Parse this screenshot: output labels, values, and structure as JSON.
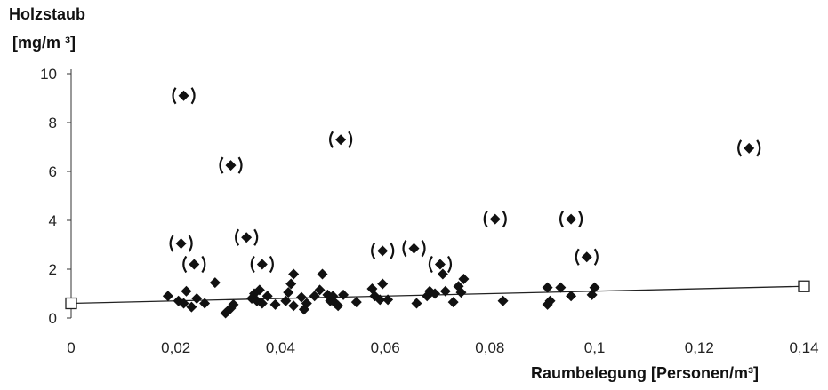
{
  "chart_data": {
    "type": "scatter",
    "ylabel_line1": "Holzstaub",
    "ylabel_line2": "[mg/m ³]",
    "xlabel": "Raumbelegung [Personen/m³]",
    "xlim": [
      0,
      0.14
    ],
    "ylim": [
      0,
      10
    ],
    "x_ticks": [
      0,
      0.02,
      0.04,
      0.06,
      0.08,
      0.1,
      0.12,
      0.14
    ],
    "x_tick_labels": [
      "0",
      "0,02",
      "0,04",
      "0,06",
      "0,08",
      "0,1",
      "0,12",
      "0,14"
    ],
    "y_ticks": [
      0,
      2,
      4,
      6,
      8,
      10
    ],
    "y_tick_labels": [
      "0",
      "2",
      "4",
      "6",
      "8",
      "10"
    ],
    "grid": false,
    "marker_color": "#111111",
    "points": [
      {
        "x": 0.0185,
        "y": 0.9
      },
      {
        "x": 0.0205,
        "y": 0.7
      },
      {
        "x": 0.0215,
        "y": 0.6
      },
      {
        "x": 0.022,
        "y": 1.1
      },
      {
        "x": 0.023,
        "y": 0.45
      },
      {
        "x": 0.024,
        "y": 0.8
      },
      {
        "x": 0.0255,
        "y": 0.6
      },
      {
        "x": 0.0275,
        "y": 1.45
      },
      {
        "x": 0.0295,
        "y": 0.2
      },
      {
        "x": 0.03,
        "y": 0.3
      },
      {
        "x": 0.0305,
        "y": 0.4
      },
      {
        "x": 0.031,
        "y": 0.55
      },
      {
        "x": 0.0345,
        "y": 0.8
      },
      {
        "x": 0.035,
        "y": 1.0
      },
      {
        "x": 0.0355,
        "y": 0.7
      },
      {
        "x": 0.036,
        "y": 1.15
      },
      {
        "x": 0.0365,
        "y": 0.6
      },
      {
        "x": 0.0375,
        "y": 0.9
      },
      {
        "x": 0.039,
        "y": 0.55
      },
      {
        "x": 0.041,
        "y": 0.7
      },
      {
        "x": 0.0415,
        "y": 1.05
      },
      {
        "x": 0.042,
        "y": 1.4
      },
      {
        "x": 0.0425,
        "y": 1.8
      },
      {
        "x": 0.0425,
        "y": 0.5
      },
      {
        "x": 0.044,
        "y": 0.85
      },
      {
        "x": 0.0445,
        "y": 0.35
      },
      {
        "x": 0.045,
        "y": 0.6
      },
      {
        "x": 0.0465,
        "y": 0.9
      },
      {
        "x": 0.0475,
        "y": 1.15
      },
      {
        "x": 0.048,
        "y": 1.8
      },
      {
        "x": 0.049,
        "y": 0.95
      },
      {
        "x": 0.0495,
        "y": 0.7
      },
      {
        "x": 0.05,
        "y": 0.9
      },
      {
        "x": 0.0505,
        "y": 0.6
      },
      {
        "x": 0.051,
        "y": 0.5
      },
      {
        "x": 0.052,
        "y": 0.95
      },
      {
        "x": 0.0545,
        "y": 0.65
      },
      {
        "x": 0.0575,
        "y": 1.2
      },
      {
        "x": 0.058,
        "y": 0.9
      },
      {
        "x": 0.059,
        "y": 0.75
      },
      {
        "x": 0.0595,
        "y": 1.4
      },
      {
        "x": 0.0605,
        "y": 0.75
      },
      {
        "x": 0.066,
        "y": 0.6
      },
      {
        "x": 0.068,
        "y": 0.9
      },
      {
        "x": 0.0685,
        "y": 1.1
      },
      {
        "x": 0.0695,
        "y": 1.0
      },
      {
        "x": 0.071,
        "y": 1.8
      },
      {
        "x": 0.0715,
        "y": 1.1
      },
      {
        "x": 0.073,
        "y": 0.65
      },
      {
        "x": 0.074,
        "y": 1.3
      },
      {
        "x": 0.0745,
        "y": 1.05
      },
      {
        "x": 0.075,
        "y": 1.6
      },
      {
        "x": 0.0825,
        "y": 0.7
      },
      {
        "x": 0.091,
        "y": 0.55
      },
      {
        "x": 0.091,
        "y": 1.25
      },
      {
        "x": 0.0915,
        "y": 0.7
      },
      {
        "x": 0.0935,
        "y": 1.25
      },
      {
        "x": 0.0955,
        "y": 0.9
      },
      {
        "x": 0.0995,
        "y": 0.95
      },
      {
        "x": 0.1,
        "y": 1.25
      }
    ],
    "bracketed_points": [
      {
        "x": 0.0215,
        "y": 9.1
      },
      {
        "x": 0.0305,
        "y": 6.25
      },
      {
        "x": 0.0515,
        "y": 7.3
      },
      {
        "x": 0.021,
        "y": 3.05
      },
      {
        "x": 0.0235,
        "y": 2.2
      },
      {
        "x": 0.0335,
        "y": 3.3
      },
      {
        "x": 0.0365,
        "y": 2.2
      },
      {
        "x": 0.0595,
        "y": 2.75
      },
      {
        "x": 0.0655,
        "y": 2.85
      },
      {
        "x": 0.0705,
        "y": 2.2
      },
      {
        "x": 0.081,
        "y": 4.05
      },
      {
        "x": 0.0955,
        "y": 4.05
      },
      {
        "x": 0.0985,
        "y": 2.5
      },
      {
        "x": 0.1295,
        "y": 6.95
      }
    ],
    "regression": {
      "x": [
        0,
        0.14
      ],
      "y": [
        0.6,
        1.3
      ]
    }
  }
}
